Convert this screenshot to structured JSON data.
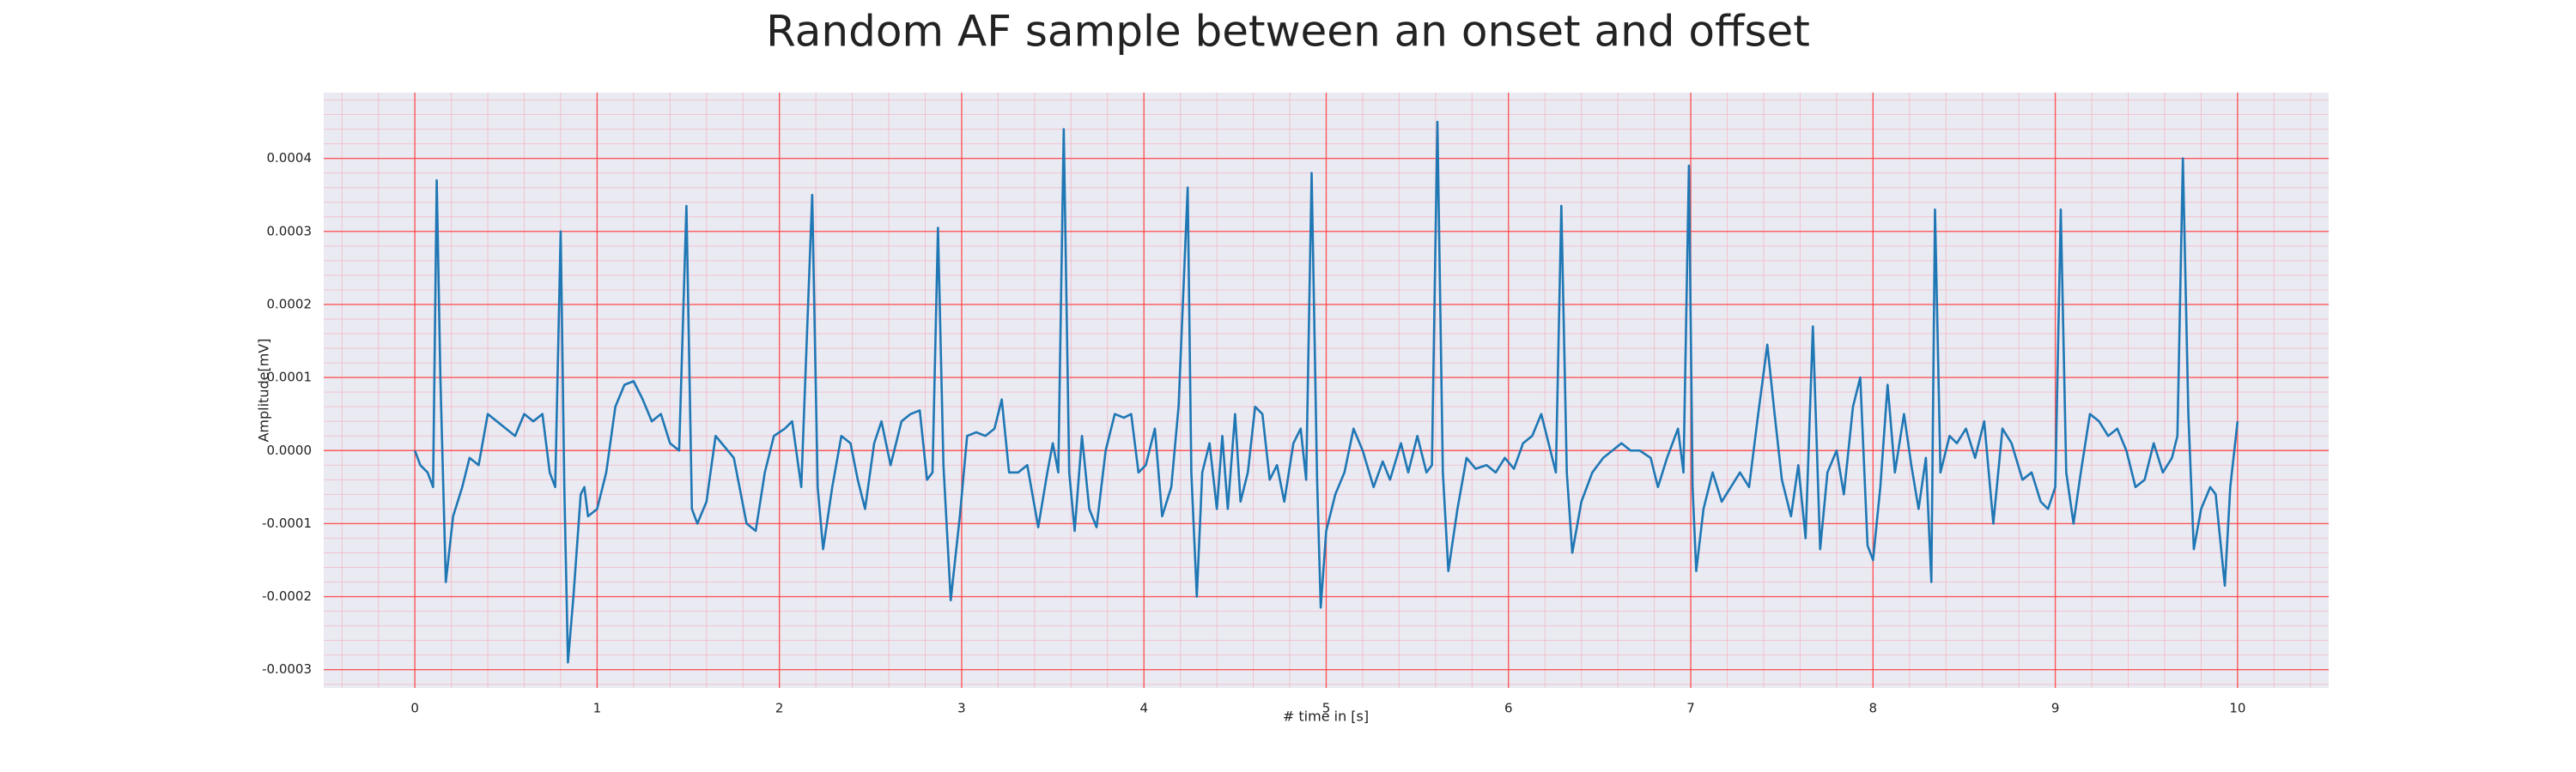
{
  "chart_data": {
    "type": "line",
    "title": "Random AF sample between an onset and offset",
    "xlabel": "# time in [s]",
    "ylabel": "Amplitude[mV]",
    "xlim": [
      -0.5,
      10.5
    ],
    "ylim": [
      -0.000325,
      0.00049
    ],
    "xticks": [
      0,
      1,
      2,
      3,
      4,
      5,
      6,
      7,
      8,
      9,
      10
    ],
    "yticks": [
      {
        "value": -0.0003,
        "label": "-0.0003"
      },
      {
        "value": -0.0002,
        "label": "-0.0002"
      },
      {
        "value": -0.0001,
        "label": "-0.0001"
      },
      {
        "value": 0,
        "label": "0.0000"
      },
      {
        "value": 0.0001,
        "label": "0.0001"
      },
      {
        "value": 0.0002,
        "label": "0.0002"
      },
      {
        "value": 0.0003,
        "label": "0.0003"
      },
      {
        "value": 0.0004,
        "label": "0.0004"
      }
    ],
    "grid": true,
    "minor_grid": true,
    "grid_color": "#ff3b3b",
    "minor_grid_color": "#f4a9b8",
    "background": "#eaeaf2",
    "color": "#1f77b4",
    "x": [
      0,
      0.03,
      0.07,
      0.1,
      0.12,
      0.14,
      0.17,
      0.21,
      0.26,
      0.3,
      0.35,
      0.4,
      0.45,
      0.5,
      0.55,
      0.6,
      0.65,
      0.7,
      0.74,
      0.77,
      0.8,
      0.82,
      0.84,
      0.87,
      0.91,
      0.93,
      0.95,
      1,
      1.05,
      1.1,
      1.15,
      1.2,
      1.25,
      1.3,
      1.35,
      1.4,
      1.45,
      1.49,
      1.52,
      1.55,
      1.6,
      1.65,
      1.7,
      1.75,
      1.82,
      1.87,
      1.92,
      1.97,
      2.03,
      2.07,
      2.12,
      2.18,
      2.21,
      2.24,
      2.29,
      2.34,
      2.39,
      2.43,
      2.47,
      2.52,
      2.56,
      2.61,
      2.67,
      2.72,
      2.77,
      2.81,
      2.84,
      2.87,
      2.9,
      2.94,
      2.99,
      3.03,
      3.08,
      3.13,
      3.18,
      3.22,
      3.26,
      3.31,
      3.36,
      3.42,
      3.47,
      3.5,
      3.53,
      3.56,
      3.59,
      3.62,
      3.66,
      3.7,
      3.74,
      3.79,
      3.84,
      3.89,
      3.93,
      3.97,
      4.01,
      4.06,
      4.1,
      4.15,
      4.19,
      4.24,
      4.26,
      4.29,
      4.32,
      4.36,
      4.4,
      4.43,
      4.46,
      4.5,
      4.53,
      4.57,
      4.61,
      4.65,
      4.69,
      4.73,
      4.77,
      4.82,
      4.86,
      4.89,
      4.92,
      4.95,
      4.97,
      5,
      5.05,
      5.1,
      5.15,
      5.2,
      5.26,
      5.31,
      5.35,
      5.41,
      5.45,
      5.5,
      5.55,
      5.58,
      5.61,
      5.64,
      5.67,
      5.72,
      5.77,
      5.82,
      5.88,
      5.93,
      5.98,
      6.03,
      6.08,
      6.13,
      6.18,
      6.22,
      6.26,
      6.29,
      6.32,
      6.35,
      6.4,
      6.46,
      6.52,
      6.57,
      6.62,
      6.67,
      6.72,
      6.78,
      6.82,
      6.87,
      6.93,
      6.96,
      6.99,
      7.01,
      7.03,
      7.07,
      7.12,
      7.17,
      7.22,
      7.27,
      7.32,
      7.37,
      7.42,
      7.46,
      7.5,
      7.55,
      7.59,
      7.63,
      7.67,
      7.71,
      7.75,
      7.8,
      7.84,
      7.89,
      7.93,
      7.97,
      8,
      8.04,
      8.08,
      8.12,
      8.17,
      8.21,
      8.25,
      8.29,
      8.32,
      8.34,
      8.37,
      8.42,
      8.46,
      8.51,
      8.56,
      8.61,
      8.66,
      8.71,
      8.76,
      8.82,
      8.87,
      8.92,
      8.96,
      9,
      9.03,
      9.06,
      9.1,
      9.14,
      9.19,
      9.24,
      9.29,
      9.34,
      9.39,
      9.44,
      9.49,
      9.54,
      9.59,
      9.64,
      9.67,
      9.7,
      9.73,
      9.76,
      9.8,
      9.85,
      9.88,
      9.93,
      9.96,
      10
    ],
    "values": [
      0,
      -2e-05,
      -3e-05,
      -5e-05,
      0.00037,
      0.0001,
      -0.00018,
      -9e-05,
      -5e-05,
      -1e-05,
      -2e-05,
      5e-05,
      4e-05,
      3e-05,
      2e-05,
      5e-05,
      4e-05,
      5e-05,
      -3e-05,
      -5e-05,
      0.0003,
      -5e-05,
      -0.00029,
      -0.0002,
      -6e-05,
      -5e-05,
      -9e-05,
      -8e-05,
      -3e-05,
      6e-05,
      9e-05,
      9.5e-05,
      7e-05,
      4e-05,
      5e-05,
      1e-05,
      0,
      0.000335,
      -8e-05,
      -0.0001,
      -7e-05,
      2e-05,
      5e-06,
      -1e-05,
      -0.0001,
      -0.00011,
      -3e-05,
      2e-05,
      3e-05,
      4e-05,
      -5e-05,
      0.00035,
      -5e-05,
      -0.000135,
      -5e-05,
      2e-05,
      1e-05,
      -4e-05,
      -8e-05,
      1e-05,
      4e-05,
      -2e-05,
      4e-05,
      5e-05,
      5.5e-05,
      -4e-05,
      -3e-05,
      0.000305,
      -2e-05,
      -0.000205,
      -9e-05,
      2e-05,
      2.5e-05,
      2e-05,
      3e-05,
      7e-05,
      -3e-05,
      -3e-05,
      -2e-05,
      -0.000105,
      -3e-05,
      1e-05,
      -3e-05,
      0.00044,
      -3e-05,
      -0.00011,
      2e-05,
      -8e-05,
      -0.000105,
      0,
      5e-05,
      4.5e-05,
      5e-05,
      -3e-05,
      -2e-05,
      3e-05,
      -9e-05,
      -5e-05,
      6e-05,
      0.00036,
      -3e-05,
      -0.0002,
      -3e-05,
      1e-05,
      -8e-05,
      2e-05,
      -8e-05,
      5e-05,
      -7e-05,
      -3e-05,
      6e-05,
      5e-05,
      -4e-05,
      -2e-05,
      -7e-05,
      1e-05,
      3e-05,
      -4e-05,
      0.00038,
      -4e-05,
      -0.000215,
      -0.00011,
      -6e-05,
      -3e-05,
      3e-05,
      0,
      -5e-05,
      -1.5e-05,
      -4e-05,
      1e-05,
      -3e-05,
      2e-05,
      -3e-05,
      -2e-05,
      0.00045,
      -3e-05,
      -0.000165,
      -8e-05,
      -1e-05,
      -2.5e-05,
      -2e-05,
      -3e-05,
      -1e-05,
      -2.5e-05,
      1e-05,
      2e-05,
      5e-05,
      1e-05,
      -3e-05,
      0.000335,
      -3e-05,
      -0.00014,
      -7e-05,
      -3e-05,
      -1e-05,
      0,
      1e-05,
      0,
      0,
      -1e-05,
      -5e-05,
      -1e-05,
      3e-05,
      -3e-05,
      0.00039,
      -5e-05,
      -0.000165,
      -8e-05,
      -3e-05,
      -7e-05,
      -5e-05,
      -3e-05,
      -5e-05,
      5e-05,
      0.000145,
      5e-05,
      -4e-05,
      -9e-05,
      -2e-05,
      -0.00012,
      0.00017,
      -0.000135,
      -3e-05,
      0,
      -6e-05,
      6e-05,
      0.0001,
      -0.00013,
      -0.00015,
      -5e-05,
      9e-05,
      -3e-05,
      5e-05,
      -2e-05,
      -8e-05,
      -1e-05,
      -0.00018,
      0.00033,
      -3e-05,
      2e-05,
      1e-05,
      3e-05,
      -1e-05,
      4e-05,
      -0.0001,
      3e-05,
      1e-05,
      -4e-05,
      -3e-05,
      -7e-05,
      -8e-05,
      -5e-05,
      0.00033,
      -3e-05,
      -0.0001,
      -3e-05,
      5e-05,
      4e-05,
      2e-05,
      3e-05,
      0,
      -5e-05,
      -4e-05,
      1e-05,
      -3e-05,
      -1e-05,
      2e-05,
      0.0004,
      5e-05,
      -0.000135,
      -8e-05,
      -5e-05,
      -6e-05,
      -0.000185,
      -5e-05,
      4e-05
    ]
  }
}
